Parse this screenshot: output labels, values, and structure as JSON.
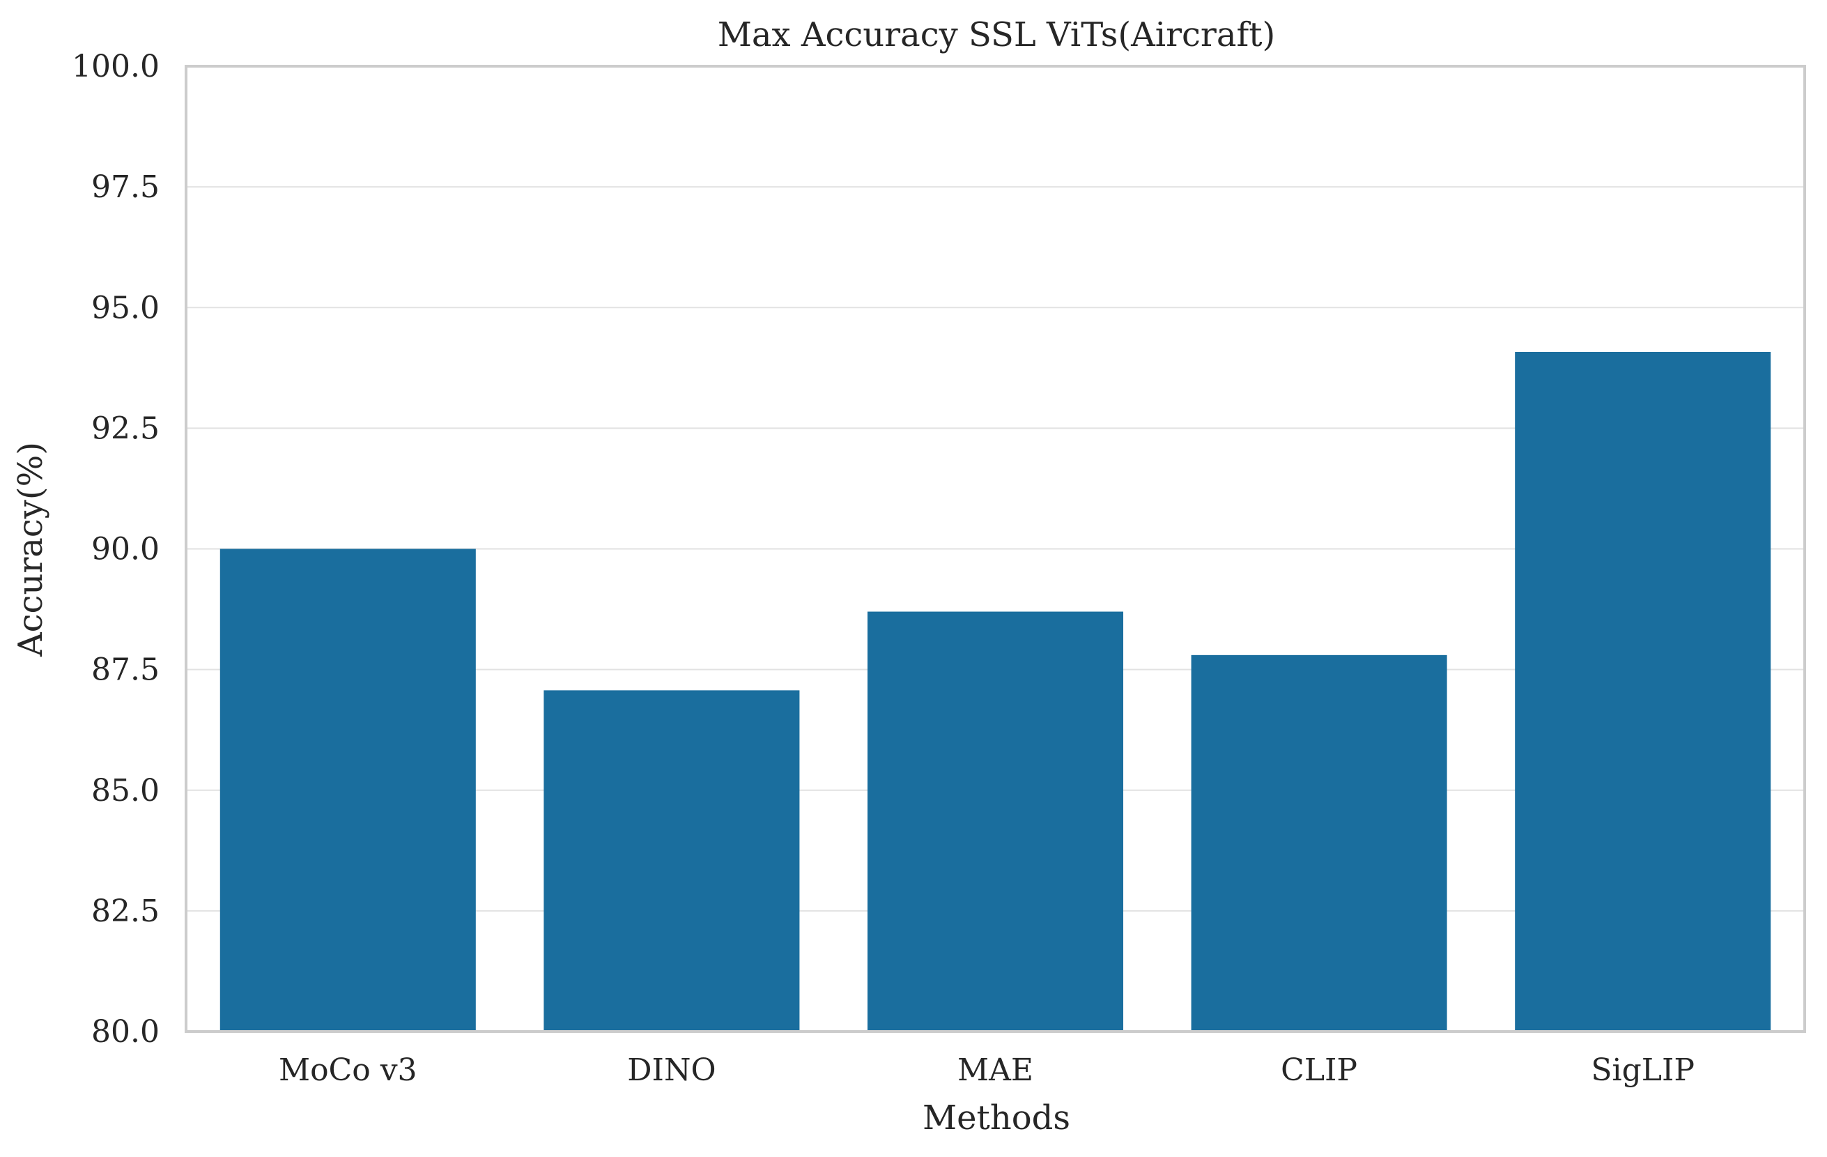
{
  "chart_data": {
    "type": "bar",
    "title": "Max Accuracy SSL ViTs(Aircraft)",
    "xlabel": "Methods",
    "ylabel": "Accuracy(%)",
    "categories": [
      "MoCo v3",
      "DINO",
      "MAE",
      "CLIP",
      "SigLIP"
    ],
    "values": [
      90.0,
      87.07,
      88.7,
      87.8,
      94.08
    ],
    "ylim": [
      80,
      100
    ],
    "yticks": [
      80,
      82.5,
      85,
      87.5,
      90,
      92.5,
      95,
      97.5,
      100
    ],
    "ytick_labels": [
      "80.0",
      "82.5",
      "85.0",
      "87.5",
      "90.0",
      "92.5",
      "95.0",
      "97.5",
      "100.0"
    ],
    "bar_color": "#1a6e9e",
    "grid": "horizontal",
    "legend": "none"
  }
}
